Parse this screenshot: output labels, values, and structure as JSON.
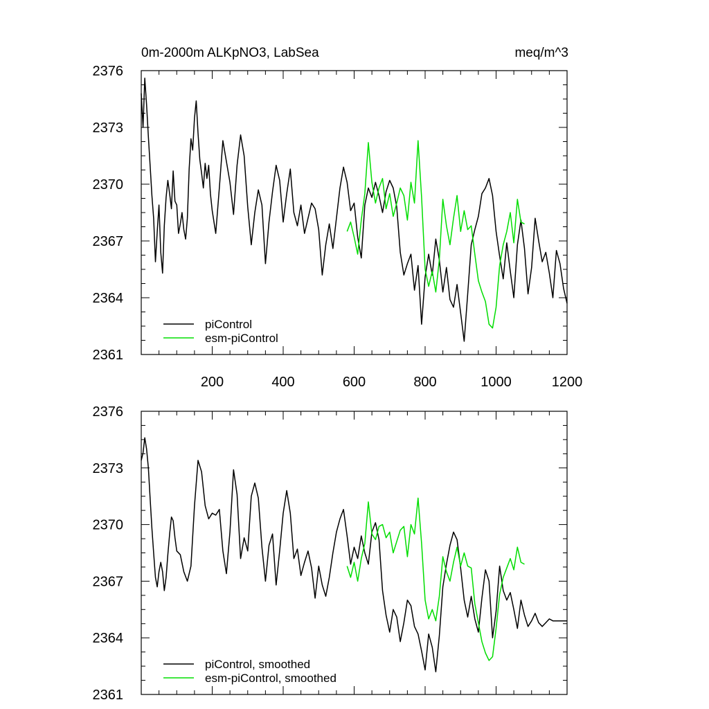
{
  "figure": {
    "title_left": "0m-2000m ALKpNO3, LabSea",
    "title_right": "meq/m^3"
  },
  "colors": {
    "piControl": "#000000",
    "esm-piControl": "#00dd00"
  },
  "chart_data": [
    {
      "type": "line",
      "xlim": [
        0,
        1200
      ],
      "ylim": [
        2361,
        2376
      ],
      "yticks": [
        2361,
        2364,
        2367,
        2370,
        2373,
        2376
      ],
      "xticks": [
        200,
        400,
        600,
        800,
        1000,
        1200
      ],
      "legend_position": "bottom-left",
      "series": [
        {
          "name": "piControl",
          "color": "#000000",
          "x": [
            0,
            5,
            10,
            15,
            20,
            25,
            30,
            35,
            40,
            45,
            50,
            55,
            60,
            65,
            70,
            75,
            80,
            85,
            90,
            95,
            100,
            105,
            110,
            115,
            120,
            125,
            130,
            135,
            140,
            145,
            150,
            155,
            160,
            165,
            170,
            175,
            180,
            185,
            190,
            195,
            200,
            210,
            220,
            230,
            240,
            250,
            260,
            270,
            280,
            290,
            300,
            310,
            320,
            330,
            340,
            350,
            360,
            370,
            380,
            390,
            400,
            410,
            420,
            430,
            440,
            450,
            460,
            470,
            480,
            490,
            500,
            510,
            520,
            530,
            540,
            550,
            560,
            570,
            580,
            590,
            600,
            610,
            620,
            630,
            640,
            650,
            660,
            670,
            680,
            690,
            700,
            710,
            720,
            730,
            740,
            750,
            760,
            770,
            780,
            790,
            800,
            810,
            820,
            830,
            840,
            850,
            860,
            870,
            880,
            890,
            900,
            910,
            920,
            930,
            940,
            950,
            960,
            970,
            980,
            990,
            1000,
            1010,
            1020,
            1030,
            1040,
            1050,
            1060,
            1070,
            1080,
            1090,
            1100,
            1110,
            1120,
            1130,
            1140,
            1150,
            1160,
            1170,
            1180,
            1190,
            1200
          ],
          "y": [
            2374.8,
            2373.0,
            2375.6,
            2374.2,
            2372.5,
            2371.0,
            2369.4,
            2368.2,
            2365.9,
            2367.5,
            2368.9,
            2366.4,
            2365.3,
            2367.8,
            2369.3,
            2370.2,
            2369.5,
            2368.7,
            2370.7,
            2369.1,
            2368.9,
            2367.4,
            2367.9,
            2368.5,
            2367.6,
            2367.1,
            2368.2,
            2370.8,
            2372.4,
            2371.8,
            2373.5,
            2374.4,
            2372.7,
            2371.3,
            2370.6,
            2369.8,
            2371.1,
            2370.3,
            2371.0,
            2369.5,
            2368.6,
            2367.4,
            2369.8,
            2372.3,
            2371.2,
            2370.1,
            2368.4,
            2371.0,
            2372.6,
            2371.5,
            2368.8,
            2366.8,
            2368.5,
            2369.7,
            2368.9,
            2365.8,
            2368.0,
            2369.6,
            2371.0,
            2370.2,
            2368.0,
            2369.5,
            2370.8,
            2368.5,
            2367.8,
            2368.9,
            2367.4,
            2368.2,
            2369.0,
            2368.7,
            2367.6,
            2365.2,
            2366.8,
            2367.9,
            2366.6,
            2368.2,
            2369.8,
            2370.9,
            2370.1,
            2368.6,
            2369.0,
            2367.2,
            2366.1,
            2368.9,
            2369.8,
            2369.3,
            2370.1,
            2369.4,
            2368.5,
            2369.6,
            2370.2,
            2369.8,
            2368.8,
            2366.4,
            2365.2,
            2365.8,
            2366.3,
            2364.4,
            2365.7,
            2362.6,
            2365.1,
            2366.3,
            2365.2,
            2367.1,
            2366.0,
            2364.3,
            2365.6,
            2363.9,
            2363.5,
            2364.7,
            2363.2,
            2361.7,
            2364.2,
            2366.8,
            2367.6,
            2368.3,
            2369.5,
            2369.8,
            2370.3,
            2369.4,
            2367.5,
            2366.2,
            2365.0,
            2366.9,
            2365.4,
            2364.0,
            2366.8,
            2368.1,
            2366.6,
            2364.2,
            2365.6,
            2368.2,
            2367.0,
            2365.9,
            2366.4,
            2365.3,
            2364.0,
            2366.5,
            2365.8,
            2364.5,
            2363.7
          ]
        },
        {
          "name": "esm-piControl",
          "color": "#00dd00",
          "x": [
            580,
            590,
            600,
            610,
            620,
            630,
            640,
            650,
            660,
            670,
            680,
            690,
            700,
            710,
            720,
            730,
            740,
            750,
            760,
            770,
            780,
            790,
            800,
            810,
            820,
            830,
            840,
            850,
            860,
            870,
            880,
            890,
            900,
            910,
            920,
            930,
            940,
            950,
            960,
            970,
            980,
            990,
            1000,
            1010,
            1020,
            1030,
            1040,
            1050,
            1060,
            1070,
            1080
          ],
          "y": [
            2367.5,
            2368.0,
            2367.2,
            2366.3,
            2368.1,
            2369.5,
            2372.2,
            2370.1,
            2369.0,
            2369.8,
            2370.3,
            2368.7,
            2369.5,
            2368.3,
            2369.0,
            2369.8,
            2369.4,
            2368.1,
            2370.1,
            2369.0,
            2372.3,
            2369.3,
            2365.5,
            2364.6,
            2365.4,
            2364.3,
            2366.0,
            2369.2,
            2367.8,
            2366.8,
            2368.2,
            2369.4,
            2367.5,
            2368.6,
            2367.6,
            2367.8,
            2366.3,
            2364.9,
            2364.3,
            2363.8,
            2362.6,
            2362.4,
            2363.5,
            2365.7,
            2366.8,
            2367.5,
            2368.5,
            2366.9,
            2369.2,
            2368.0,
            2367.9
          ]
        }
      ],
      "legend": [
        "piControl",
        "esm-piControl"
      ]
    },
    {
      "type": "line",
      "xlim": [
        0,
        1200
      ],
      "ylim": [
        2361,
        2376
      ],
      "yticks": [
        2361,
        2364,
        2367,
        2370,
        2373,
        2376
      ],
      "legend_position": "bottom-left",
      "series": [
        {
          "name": "piControl, smoothed",
          "color": "#000000",
          "x": [
            0,
            5,
            10,
            15,
            20,
            25,
            30,
            35,
            40,
            45,
            50,
            55,
            60,
            65,
            70,
            75,
            80,
            85,
            90,
            95,
            100,
            110,
            120,
            130,
            140,
            150,
            160,
            170,
            180,
            190,
            200,
            210,
            220,
            230,
            240,
            250,
            260,
            270,
            280,
            290,
            300,
            310,
            320,
            330,
            340,
            350,
            360,
            370,
            380,
            390,
            400,
            410,
            420,
            430,
            440,
            450,
            460,
            470,
            480,
            490,
            500,
            510,
            520,
            530,
            540,
            550,
            560,
            570,
            580,
            590,
            600,
            610,
            620,
            630,
            640,
            650,
            660,
            670,
            680,
            690,
            700,
            710,
            720,
            730,
            740,
            750,
            760,
            770,
            780,
            790,
            800,
            810,
            820,
            830,
            840,
            850,
            860,
            870,
            880,
            890,
            900,
            910,
            920,
            930,
            940,
            950,
            960,
            970,
            980,
            990,
            1000,
            1010,
            1020,
            1030,
            1040,
            1050,
            1060,
            1070,
            1080,
            1090,
            1100,
            1110,
            1120,
            1130,
            1140,
            1150,
            1160,
            1170,
            1180,
            1190,
            1200
          ],
          "y": [
            2373.4,
            2373.8,
            2374.6,
            2374.0,
            2373.0,
            2371.4,
            2369.8,
            2368.5,
            2367.2,
            2366.7,
            2367.5,
            2368.0,
            2367.5,
            2366.5,
            2367.2,
            2368.4,
            2369.5,
            2370.4,
            2370.2,
            2369.3,
            2368.6,
            2368.4,
            2367.5,
            2367.0,
            2367.8,
            2371.0,
            2373.4,
            2372.8,
            2371.0,
            2370.3,
            2370.6,
            2370.5,
            2370.8,
            2368.6,
            2367.4,
            2369.6,
            2372.9,
            2371.6,
            2368.2,
            2369.3,
            2368.6,
            2371.5,
            2372.2,
            2371.4,
            2368.8,
            2367.0,
            2368.9,
            2369.5,
            2366.8,
            2368.6,
            2370.6,
            2371.8,
            2370.6,
            2368.2,
            2368.7,
            2367.3,
            2368.0,
            2368.6,
            2367.7,
            2366.1,
            2367.8,
            2366.8,
            2366.2,
            2367.2,
            2368.5,
            2369.6,
            2370.3,
            2370.8,
            2369.4,
            2367.9,
            2368.8,
            2368.2,
            2369.4,
            2368.5,
            2367.9,
            2369.6,
            2370.1,
            2369.2,
            2366.5,
            2365.2,
            2364.3,
            2365.5,
            2365.1,
            2363.8,
            2364.8,
            2366.0,
            2365.7,
            2364.6,
            2364.2,
            2363.3,
            2362.3,
            2364.2,
            2363.5,
            2362.2,
            2364.1,
            2366.7,
            2367.9,
            2368.9,
            2369.6,
            2369.2,
            2367.7,
            2366.0,
            2365.1,
            2366.2,
            2365.0,
            2364.3,
            2366.1,
            2367.6,
            2367.0,
            2364.0,
            2365.4,
            2367.8,
            2366.5,
            2366.0,
            2366.4,
            2365.5,
            2364.5,
            2366.0,
            2365.2,
            2364.6,
            2364.9,
            2365.3,
            2364.8,
            2364.6,
            2364.8,
            2365.0,
            2364.9,
            2364.9,
            2364.9,
            2364.9,
            2364.9
          ]
        },
        {
          "name": "esm-piControl, smoothed",
          "color": "#00dd00",
          "x": [
            580,
            590,
            600,
            610,
            620,
            630,
            640,
            650,
            660,
            670,
            680,
            690,
            700,
            710,
            720,
            730,
            740,
            750,
            760,
            770,
            780,
            790,
            800,
            810,
            820,
            830,
            840,
            850,
            860,
            870,
            880,
            890,
            900,
            910,
            920,
            930,
            940,
            950,
            960,
            970,
            980,
            990,
            1000,
            1010,
            1020,
            1030,
            1040,
            1050,
            1060,
            1070,
            1080
          ],
          "y": [
            2367.8,
            2367.2,
            2368.0,
            2367.0,
            2368.2,
            2369.0,
            2371.2,
            2369.5,
            2369.2,
            2369.9,
            2370.0,
            2369.3,
            2369.6,
            2368.5,
            2369.1,
            2369.7,
            2369.9,
            2368.3,
            2370.0,
            2369.5,
            2371.4,
            2369.0,
            2366.0,
            2365.0,
            2365.5,
            2364.9,
            2366.2,
            2368.3,
            2367.5,
            2367.0,
            2368.0,
            2368.8,
            2367.8,
            2368.5,
            2367.8,
            2367.7,
            2365.8,
            2364.8,
            2363.8,
            2363.2,
            2362.8,
            2363.0,
            2364.5,
            2366.3,
            2367.2,
            2367.7,
            2368.2,
            2367.6,
            2368.8,
            2368.0,
            2367.9
          ]
        }
      ],
      "legend": [
        "piControl, smoothed",
        "esm-piControl, smoothed"
      ]
    }
  ]
}
